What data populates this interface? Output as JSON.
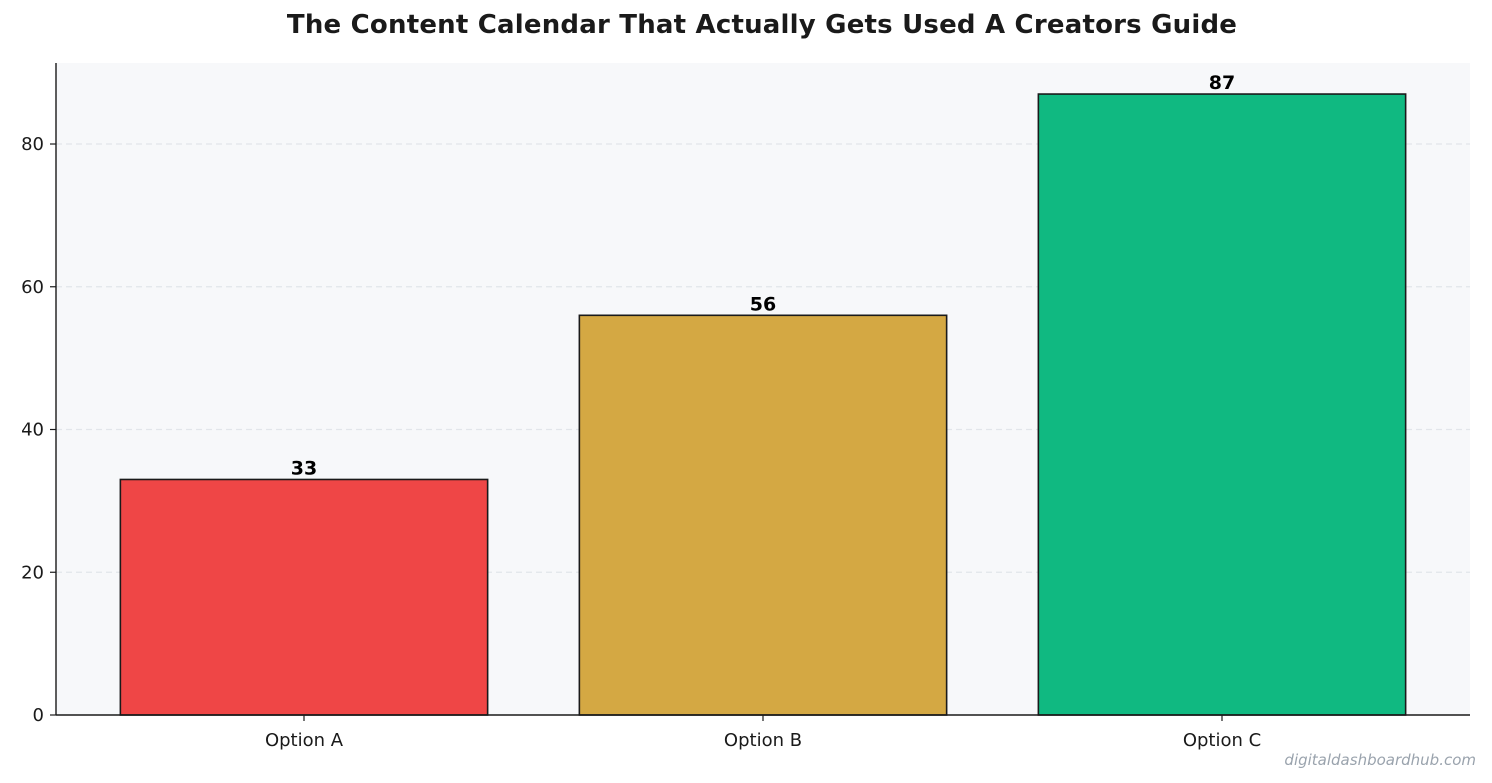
{
  "colors": {
    "plot_background": "#f7f8fa",
    "grid": "#e2e5ea",
    "axis": "#1a1a1a",
    "bar_edge": "#1a1a1a"
  },
  "chart_data": {
    "type": "bar",
    "title": "The Content Calendar That Actually Gets Used  A Creators Guide",
    "categories": [
      "Option A",
      "Option B",
      "Option C"
    ],
    "values": [
      33,
      56,
      87
    ],
    "bar_colors": [
      "#ef4646",
      "#d4a843",
      "#10b981"
    ],
    "xlabel": "",
    "ylabel": "",
    "ylim": [
      0,
      91.35
    ],
    "yticks": [
      0,
      20,
      40,
      60,
      80
    ],
    "grid": true,
    "grid_style": "dashed horizontal",
    "data_labels": [
      "33",
      "56",
      "87"
    ]
  },
  "watermark": "digitaldashboardhub.com"
}
